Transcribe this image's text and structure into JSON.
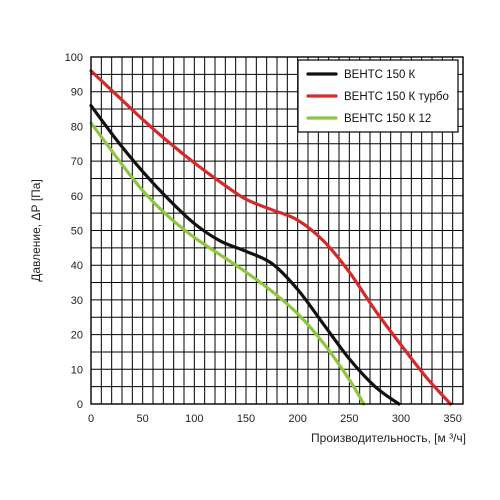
{
  "chart_data": {
    "type": "line",
    "title": "",
    "xlabel": "Производительность, [м ³/ч]",
    "ylabel": "Давление, ΔР [Па]",
    "xlim": [
      0,
      360
    ],
    "ylim": [
      0,
      100
    ],
    "x_ticks": [
      0,
      50,
      100,
      150,
      200,
      250,
      300,
      350
    ],
    "y_ticks": [
      0,
      10,
      20,
      30,
      40,
      50,
      60,
      70,
      80,
      90,
      100
    ],
    "grid": true,
    "legend_position": "top-right",
    "series": [
      {
        "name": "ВЕНТС 150 К",
        "color": "#111111",
        "points": [
          [
            0,
            86
          ],
          [
            25,
            76
          ],
          [
            50,
            67
          ],
          [
            75,
            59
          ],
          [
            100,
            52
          ],
          [
            125,
            47
          ],
          [
            150,
            44
          ],
          [
            175,
            40.5
          ],
          [
            200,
            33
          ],
          [
            225,
            23
          ],
          [
            250,
            13
          ],
          [
            275,
            5
          ],
          [
            298,
            0
          ]
        ]
      },
      {
        "name": "ВЕНТС 150 К турбо",
        "color": "#d42a2a",
        "points": [
          [
            0,
            96
          ],
          [
            25,
            89
          ],
          [
            50,
            82
          ],
          [
            75,
            75.5
          ],
          [
            100,
            69.5
          ],
          [
            125,
            64
          ],
          [
            150,
            59
          ],
          [
            175,
            56
          ],
          [
            200,
            53
          ],
          [
            225,
            47
          ],
          [
            250,
            38
          ],
          [
            275,
            27
          ],
          [
            300,
            17
          ],
          [
            325,
            7.5
          ],
          [
            348,
            0
          ]
        ]
      },
      {
        "name": "ВЕНТС 150 К 12",
        "color": "#8dc63f",
        "points": [
          [
            0,
            81
          ],
          [
            25,
            71
          ],
          [
            50,
            61.5
          ],
          [
            75,
            54
          ],
          [
            100,
            48
          ],
          [
            125,
            43
          ],
          [
            150,
            38
          ],
          [
            175,
            32.5
          ],
          [
            200,
            26
          ],
          [
            225,
            17.5
          ],
          [
            250,
            7
          ],
          [
            264,
            0
          ]
        ]
      }
    ]
  }
}
